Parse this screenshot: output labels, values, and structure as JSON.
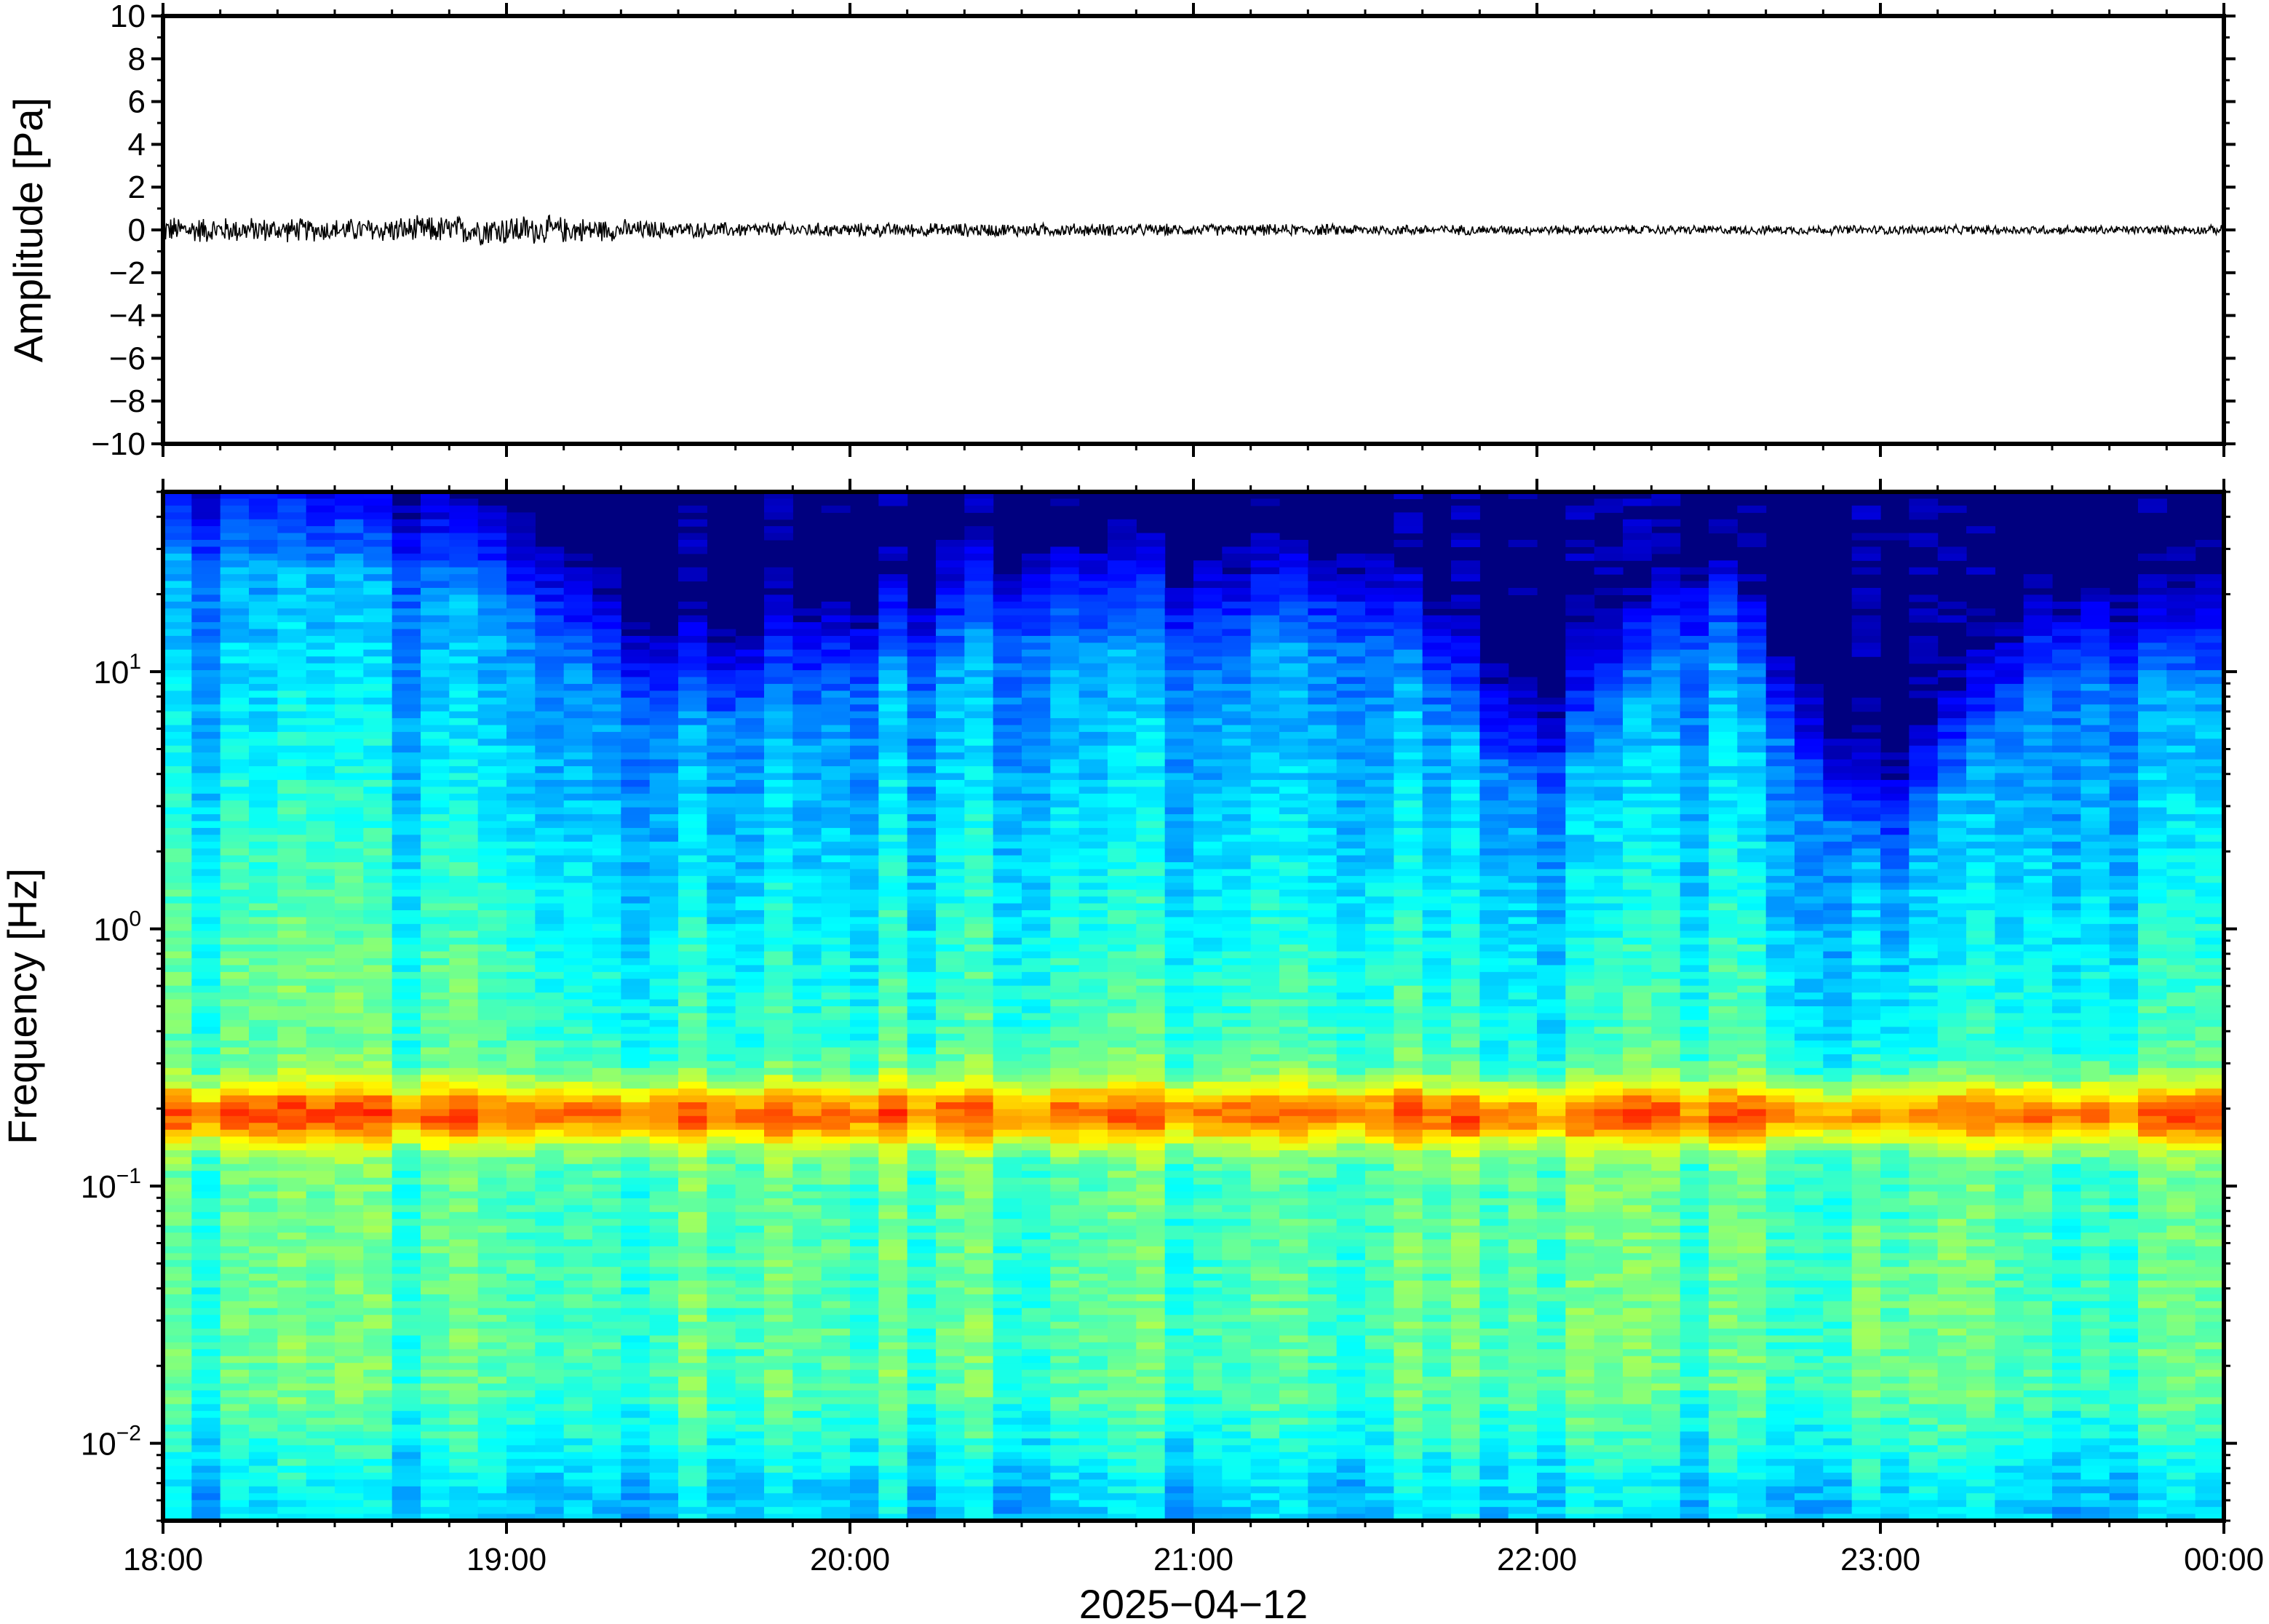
{
  "chart_data": [
    {
      "type": "line",
      "panel": "waveform",
      "title": "",
      "xlabel": "",
      "ylabel": "Amplitude [Pa]",
      "ylim": [
        -10,
        10
      ],
      "yticks": [
        {
          "value": 10,
          "label": "10"
        },
        {
          "value": 8,
          "label": "8"
        },
        {
          "value": 6,
          "label": "6"
        },
        {
          "value": 4,
          "label": "4"
        },
        {
          "value": 2,
          "label": "2"
        },
        {
          "value": 0,
          "label": "0"
        },
        {
          "value": -2,
          "label": "−2"
        },
        {
          "value": -4,
          "label": "−4"
        },
        {
          "value": -6,
          "label": "−6"
        },
        {
          "value": -8,
          "label": "−8"
        },
        {
          "value": -10,
          "label": "−10"
        }
      ],
      "grid": false,
      "series": [
        {
          "x": [
            "18:00",
            "18:30",
            "19:00",
            "19:30",
            "20:00",
            "20:30",
            "21:00",
            "21:30",
            "22:00",
            "22:30",
            "23:00",
            "23:30",
            "00:00"
          ],
          "envelope_pa": [
            0.6,
            0.5,
            0.7,
            0.35,
            0.3,
            0.3,
            0.25,
            0.25,
            0.2,
            0.2,
            0.2,
            0.2,
            0.2
          ],
          "color": "#000000"
        }
      ]
    },
    {
      "type": "heatmap",
      "panel": "spectrogram",
      "title": "",
      "xlabel": "2025−04−12",
      "ylabel": "Frequency [Hz]",
      "yscale": "log",
      "ylim_hz": [
        0.005,
        50
      ],
      "yticks": [
        {
          "value": 10,
          "base": "10",
          "exp": "1"
        },
        {
          "value": 1,
          "base": "10",
          "exp": "0"
        },
        {
          "value": 0.1,
          "base": "10",
          "exp": "−1"
        },
        {
          "value": 0.01,
          "base": "10",
          "exp": "−2"
        }
      ],
      "xticks": [
        "18:00",
        "19:00",
        "20:00",
        "21:00",
        "22:00",
        "23:00",
        "00:00"
      ],
      "colormap": [
        "#00007f",
        "#0000ff",
        "#007fff",
        "#00ffff",
        "#7fff7f",
        "#ffff00",
        "#ff7f00",
        "#ff0000"
      ],
      "microseism_peak_hz": 0.19,
      "time_columns": [
        "18:00",
        "18:30",
        "19:00",
        "19:30",
        "20:00",
        "20:30",
        "21:00",
        "21:30",
        "22:00",
        "22:30",
        "23:00",
        "23:30",
        "00:00"
      ],
      "upper_energy_cutoff_hz": [
        30,
        25,
        18,
        6,
        8,
        14,
        12,
        14,
        3,
        14,
        1.5,
        10,
        8
      ]
    }
  ]
}
